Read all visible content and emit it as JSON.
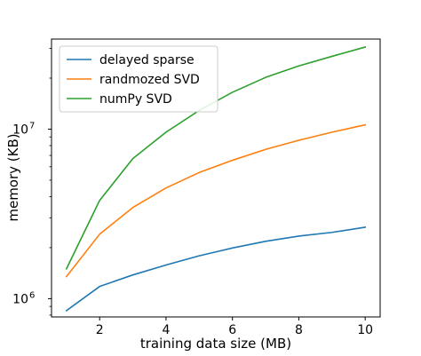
{
  "chart_data": {
    "type": "line",
    "title": "",
    "xlabel": "training data size (MB)",
    "ylabel": "memory (KB)",
    "x": [
      1,
      2,
      3,
      4,
      5,
      6,
      7,
      8,
      9,
      10
    ],
    "xlim": [
      0.55,
      10.45
    ],
    "ylim": [
      780000,
      34000000
    ],
    "yscale": "log",
    "x_ticks": [
      2,
      4,
      6,
      8,
      10
    ],
    "x_tick_labels": [
      "2",
      "4",
      "6",
      "8",
      "10"
    ],
    "y_ticks": [
      1000000,
      10000000
    ],
    "y_tick_labels": [
      {
        "base": "10",
        "exp": "6"
      },
      {
        "base": "10",
        "exp": "7"
      }
    ],
    "grid": false,
    "legend_position": "top-left",
    "series": [
      {
        "name": "delayed sparse",
        "color": "#1f77b4",
        "values": [
          850000,
          1180000,
          1380000,
          1580000,
          1790000,
          1990000,
          2180000,
          2340000,
          2460000,
          2640000
        ]
      },
      {
        "name": "randmozed SVD",
        "color": "#ff7f0e",
        "values": [
          1350000,
          2400000,
          3450000,
          4500000,
          5550000,
          6550000,
          7600000,
          8600000,
          9600000,
          10600000
        ]
      },
      {
        "name": "numPy SVD",
        "color": "#2ca02c",
        "values": [
          1500000,
          3800000,
          6700000,
          9600000,
          12900000,
          16500000,
          20200000,
          23600000,
          26900000,
          30500000
        ]
      }
    ]
  }
}
